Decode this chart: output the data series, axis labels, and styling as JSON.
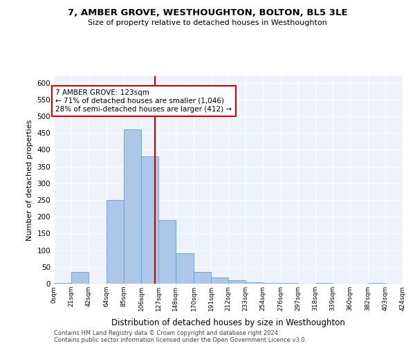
{
  "title": "7, AMBER GROVE, WESTHOUGHTON, BOLTON, BL5 3LE",
  "subtitle": "Size of property relative to detached houses in Westhoughton",
  "xlabel": "Distribution of detached houses by size in Westhoughton",
  "ylabel": "Number of detached properties",
  "footnote1": "Contains HM Land Registry data © Crown copyright and database right 2024.",
  "footnote2": "Contains public sector information licensed under the Open Government Licence v3.0.",
  "property_size": 123,
  "annotation_line1": "7 AMBER GROVE: 123sqm",
  "annotation_line2": "← 71% of detached houses are smaller (1,046)",
  "annotation_line3": "28% of semi-detached houses are larger (412) →",
  "bar_color": "#aec6e8",
  "bar_edge_color": "#5a9fd4",
  "vline_color": "#cc0000",
  "annotation_box_color": "#cc0000",
  "background_color": "#eef2fa",
  "grid_color": "#ffffff",
  "bins": [
    0,
    21,
    42,
    64,
    85,
    106,
    127,
    148,
    170,
    191,
    212,
    233,
    254,
    276,
    297,
    318,
    339,
    360,
    382,
    403,
    424
  ],
  "bin_labels": [
    "0sqm",
    "21sqm",
    "42sqm",
    "64sqm",
    "85sqm",
    "106sqm",
    "127sqm",
    "148sqm",
    "170sqm",
    "191sqm",
    "212sqm",
    "233sqm",
    "254sqm",
    "276sqm",
    "297sqm",
    "318sqm",
    "339sqm",
    "360sqm",
    "382sqm",
    "403sqm",
    "424sqm"
  ],
  "bar_heights": [
    3,
    35,
    0,
    250,
    460,
    380,
    190,
    90,
    35,
    18,
    10,
    5,
    3,
    2,
    0,
    3,
    0,
    0,
    3,
    0,
    2
  ],
  "ylim": [
    0,
    620
  ],
  "yticks": [
    0,
    50,
    100,
    150,
    200,
    250,
    300,
    350,
    400,
    450,
    500,
    550,
    600
  ]
}
